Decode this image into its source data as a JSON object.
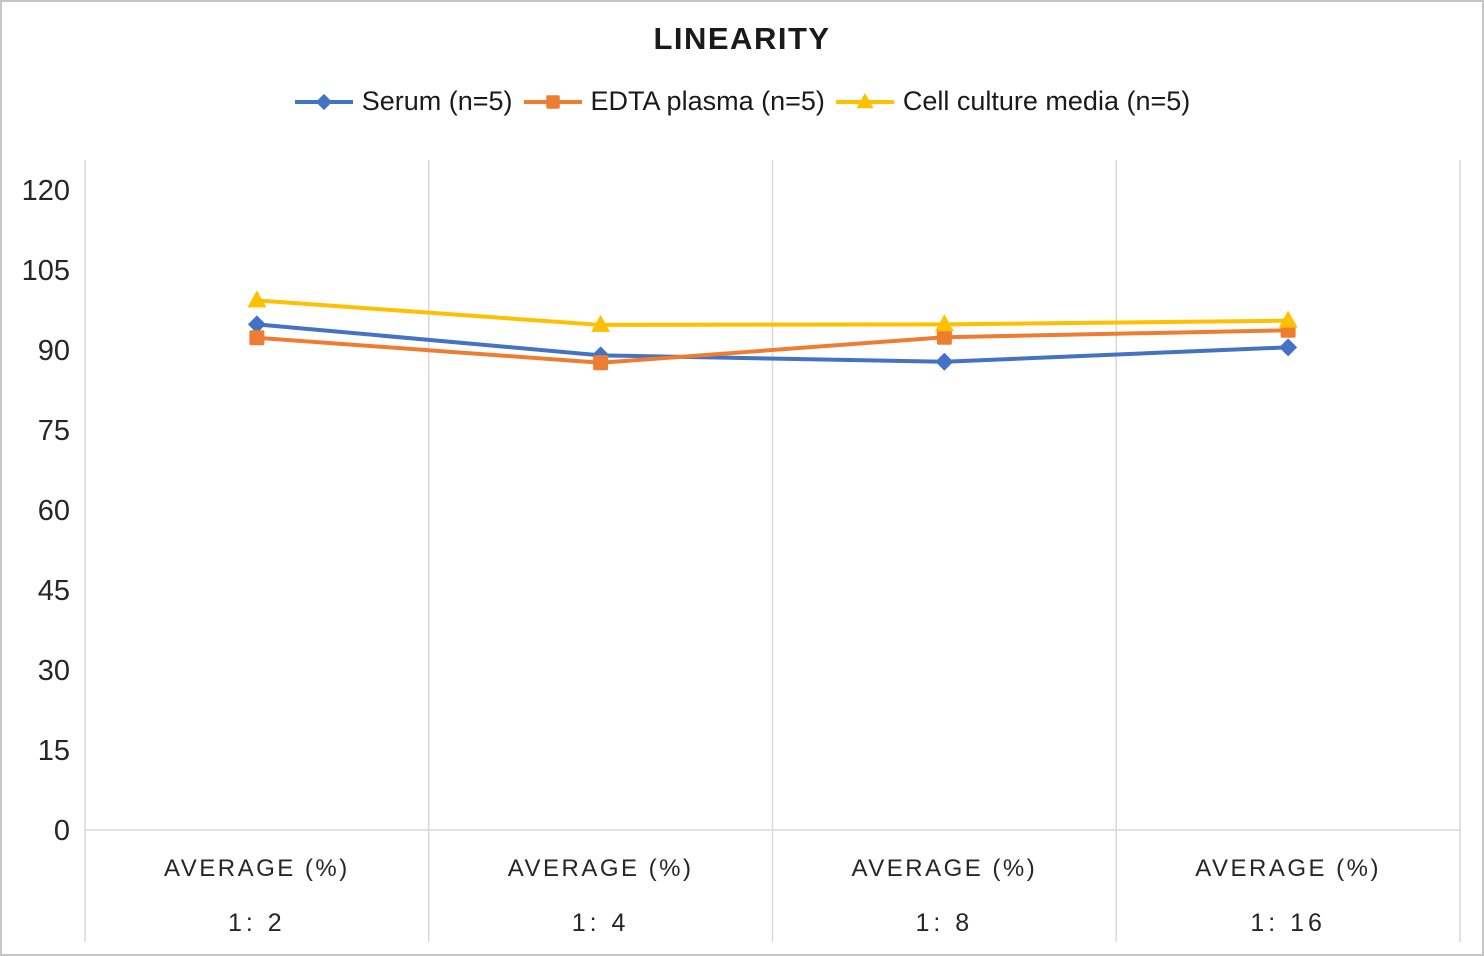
{
  "chart_data": {
    "type": "line",
    "title": "LINEARITY",
    "x_header": "AVERAGE (%)",
    "categories": [
      "1: 2",
      "1: 4",
      "1: 8",
      "1: 16"
    ],
    "series": [
      {
        "name": "Serum (n=5)",
        "color": "#4472C4",
        "marker": "diamond",
        "values": [
          94.8,
          89.0,
          87.8,
          90.5
        ]
      },
      {
        "name": "EDTA plasma (n=5)",
        "color": "#ED7D31",
        "marker": "square",
        "values": [
          92.3,
          87.6,
          92.4,
          93.7
        ]
      },
      {
        "name": "Cell culture media (n=5)",
        "color": "#FFC000",
        "marker": "triangle",
        "values": [
          99.3,
          94.7,
          94.8,
          95.5
        ]
      }
    ],
    "y_ticks": [
      0,
      15,
      30,
      45,
      60,
      75,
      90,
      105,
      120
    ],
    "ylim": [
      0,
      120
    ],
    "xlabel": "",
    "ylabel": "",
    "legend_position": "top",
    "grid": "vertical-only",
    "gridline_color": "#D9D9D9",
    "text_color": "#262626"
  }
}
